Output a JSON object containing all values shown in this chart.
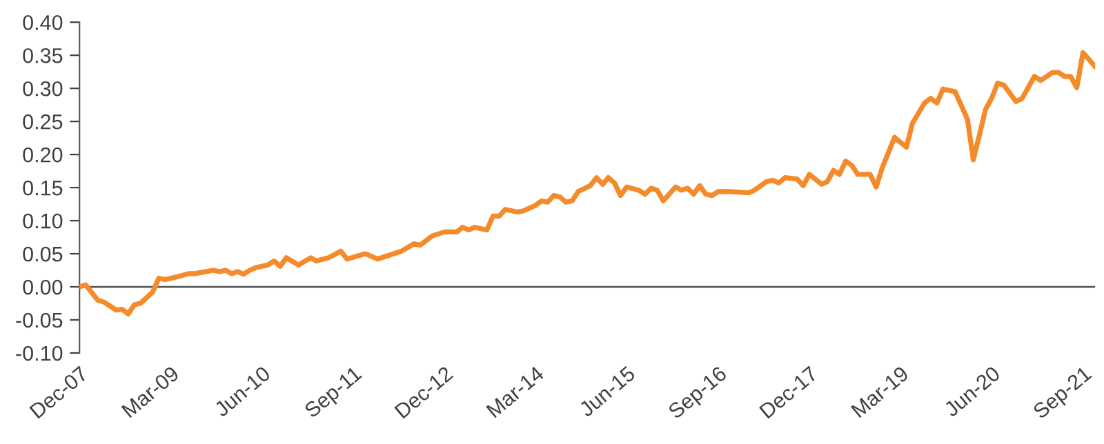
{
  "chart_data": {
    "type": "line",
    "x": [
      "2007-12",
      "2008-01",
      "2008-03",
      "2008-04",
      "2008-06",
      "2008-07",
      "2008-08",
      "2008-09",
      "2008-10",
      "2008-12",
      "2009-01",
      "2009-02",
      "2009-04",
      "2009-06",
      "2009-07",
      "2009-10",
      "2009-11",
      "2009-12",
      "2010-01",
      "2010-02",
      "2010-03",
      "2010-04",
      "2010-05",
      "2010-07",
      "2010-08",
      "2010-09",
      "2010-10",
      "2010-12",
      "2011-02",
      "2011-03",
      "2011-05",
      "2011-07",
      "2011-08",
      "2011-11",
      "2012-01",
      "2012-03",
      "2012-05",
      "2012-07",
      "2012-08",
      "2012-10",
      "2012-12",
      "2013-02",
      "2013-03",
      "2013-04",
      "2013-05",
      "2013-07",
      "2013-08",
      "2013-09",
      "2013-10",
      "2013-12",
      "2014-01",
      "2014-03",
      "2014-04",
      "2014-05",
      "2014-06",
      "2014-07",
      "2014-08",
      "2014-09",
      "2014-10",
      "2014-12",
      "2015-01",
      "2015-02",
      "2015-03",
      "2015-04",
      "2015-05",
      "2015-06",
      "2015-08",
      "2015-09",
      "2015-10",
      "2015-11",
      "2015-12",
      "2016-02",
      "2016-03",
      "2016-04",
      "2016-05",
      "2016-06",
      "2016-07",
      "2016-08",
      "2016-09",
      "2016-11",
      "2017-02",
      "2017-03",
      "2017-05",
      "2017-06",
      "2017-07",
      "2017-08",
      "2017-10",
      "2017-11",
      "2017-12",
      "2018-02",
      "2018-03",
      "2018-04",
      "2018-05",
      "2018-06",
      "2018-07",
      "2018-08",
      "2018-10",
      "2018-11",
      "2018-12",
      "2019-02",
      "2019-04",
      "2019-05",
      "2019-07",
      "2019-08",
      "2019-09",
      "2019-10",
      "2019-12",
      "2020-02",
      "2020-03",
      "2020-04",
      "2020-05",
      "2020-06",
      "2020-07",
      "2020-08",
      "2020-10",
      "2020-11",
      "2021-01",
      "2021-02",
      "2021-04",
      "2021-05",
      "2021-06",
      "2021-07",
      "2021-08",
      "2021-09",
      "2021-11"
    ],
    "series": [
      {
        "color": "#f58a2a",
        "values": [
          0.0,
          0.003,
          -0.02,
          -0.023,
          -0.035,
          -0.034,
          -0.041,
          -0.027,
          -0.025,
          -0.008,
          0.013,
          0.011,
          0.015,
          0.02,
          0.02,
          0.025,
          0.023,
          0.025,
          0.02,
          0.023,
          0.019,
          0.025,
          0.029,
          0.033,
          0.039,
          0.031,
          0.044,
          0.033,
          0.044,
          0.039,
          0.044,
          0.054,
          0.042,
          0.05,
          0.042,
          0.048,
          0.054,
          0.065,
          0.063,
          0.077,
          0.083,
          0.083,
          0.09,
          0.086,
          0.09,
          0.086,
          0.107,
          0.107,
          0.117,
          0.113,
          0.115,
          0.123,
          0.13,
          0.128,
          0.138,
          0.136,
          0.128,
          0.13,
          0.144,
          0.153,
          0.165,
          0.155,
          0.165,
          0.157,
          0.138,
          0.151,
          0.146,
          0.14,
          0.149,
          0.146,
          0.13,
          0.151,
          0.146,
          0.149,
          0.14,
          0.153,
          0.14,
          0.138,
          0.144,
          0.144,
          0.142,
          0.146,
          0.159,
          0.161,
          0.157,
          0.165,
          0.163,
          0.153,
          0.17,
          0.155,
          0.159,
          0.176,
          0.17,
          0.19,
          0.184,
          0.17,
          0.17,
          0.151,
          0.18,
          0.226,
          0.211,
          0.247,
          0.278,
          0.285,
          0.278,
          0.299,
          0.295,
          0.253,
          0.192,
          0.23,
          0.268,
          0.285,
          0.308,
          0.305,
          0.28,
          0.285,
          0.318,
          0.312,
          0.324,
          0.324,
          0.318,
          0.318,
          0.301,
          0.354,
          0.333
        ]
      }
    ],
    "xlim": [
      "2007-12",
      "2021-11"
    ],
    "xticks": [
      {
        "value": "2007-12",
        "label": "Dec-07"
      },
      {
        "value": "2009-03",
        "label": "Mar-09"
      },
      {
        "value": "2010-06",
        "label": "Jun-10"
      },
      {
        "value": "2011-09",
        "label": "Sep-11"
      },
      {
        "value": "2012-12",
        "label": "Dec-12"
      },
      {
        "value": "2014-03",
        "label": "Mar-14"
      },
      {
        "value": "2015-06",
        "label": "Jun-15"
      },
      {
        "value": "2016-09",
        "label": "Sep-16"
      },
      {
        "value": "2017-12",
        "label": "Dec-17"
      },
      {
        "value": "2019-03",
        "label": "Mar-19"
      },
      {
        "value": "2020-06",
        "label": "Jun-20"
      },
      {
        "value": "2021-09",
        "label": "Sep-21"
      }
    ],
    "ylim": [
      -0.1,
      0.4
    ],
    "yticks": [
      {
        "value": -0.1,
        "label": "-0.10"
      },
      {
        "value": -0.05,
        "label": "-0.05"
      },
      {
        "value": 0,
        "label": "0.00"
      },
      {
        "value": 0.05,
        "label": "0.05"
      },
      {
        "value": 0.1,
        "label": "0.10"
      },
      {
        "value": 0.15,
        "label": "0.15"
      },
      {
        "value": 0.2,
        "label": "0.20"
      },
      {
        "value": 0.25,
        "label": "0.25"
      },
      {
        "value": 0.3,
        "label": "0.30"
      },
      {
        "value": 0.35,
        "label": "0.35"
      },
      {
        "value": 0.4,
        "label": "0.40"
      }
    ],
    "ref_lines": [
      {
        "axis": "y",
        "value": 0,
        "color": "#595959"
      }
    ],
    "grid": false,
    "legend": false
  }
}
